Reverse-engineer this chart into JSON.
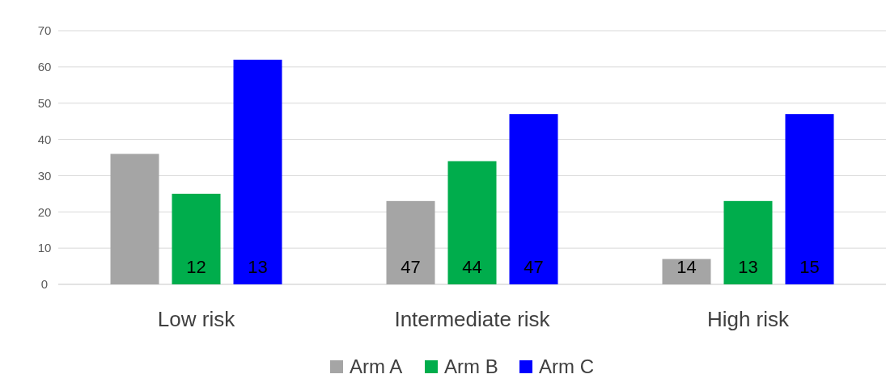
{
  "chart_data": {
    "type": "bar",
    "categories": [
      "Low risk",
      "Intermediate risk",
      "High risk"
    ],
    "series": [
      {
        "name": "Arm A",
        "color": "#a5a5a5",
        "values": [
          36,
          23,
          7
        ]
      },
      {
        "name": "Arm B",
        "color": "#00ad4c",
        "values": [
          25,
          34,
          23
        ]
      },
      {
        "name": "Arm C",
        "color": "#0000ff",
        "values": [
          62,
          47,
          47
        ]
      }
    ],
    "annotations": [
      "12",
      "13",
      "47",
      "44",
      "47",
      "14",
      "13",
      "15"
    ],
    "ylim": [
      0,
      70
    ],
    "yticks": [
      0,
      10,
      20,
      30,
      40,
      50,
      60,
      70
    ],
    "grid": "y",
    "legend": "bottom"
  }
}
